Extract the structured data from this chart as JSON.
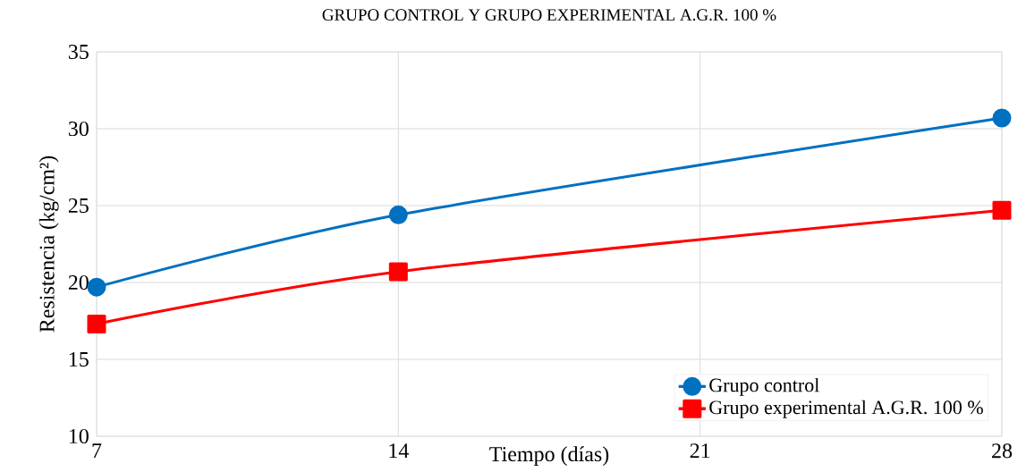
{
  "chart_data": {
    "type": "line",
    "title": "GRUPO CONTROL Y GRUPO EXPERIMENTAL A.G.R. 100 %",
    "xlabel": "Tiempo (días)",
    "ylabel": "Resistencia (kg/cm²)",
    "x": [
      7,
      14,
      28
    ],
    "series": [
      {
        "name": "Grupo control",
        "color": "#0070c0",
        "marker": "circle",
        "values": [
          19.7,
          24.4,
          30.7
        ]
      },
      {
        "name": "Grupo experimental A.G.R. 100 %",
        "color": "#ff0000",
        "marker": "square",
        "values": [
          17.3,
          20.7,
          24.7
        ]
      }
    ],
    "xlim": [
      7,
      28
    ],
    "xticks": [
      7,
      14,
      21,
      28
    ],
    "ylim": [
      10,
      35
    ],
    "yticks": [
      10,
      15,
      20,
      25,
      30,
      35
    ],
    "grid": true,
    "legend": "bottom right",
    "line_style": "solid"
  }
}
